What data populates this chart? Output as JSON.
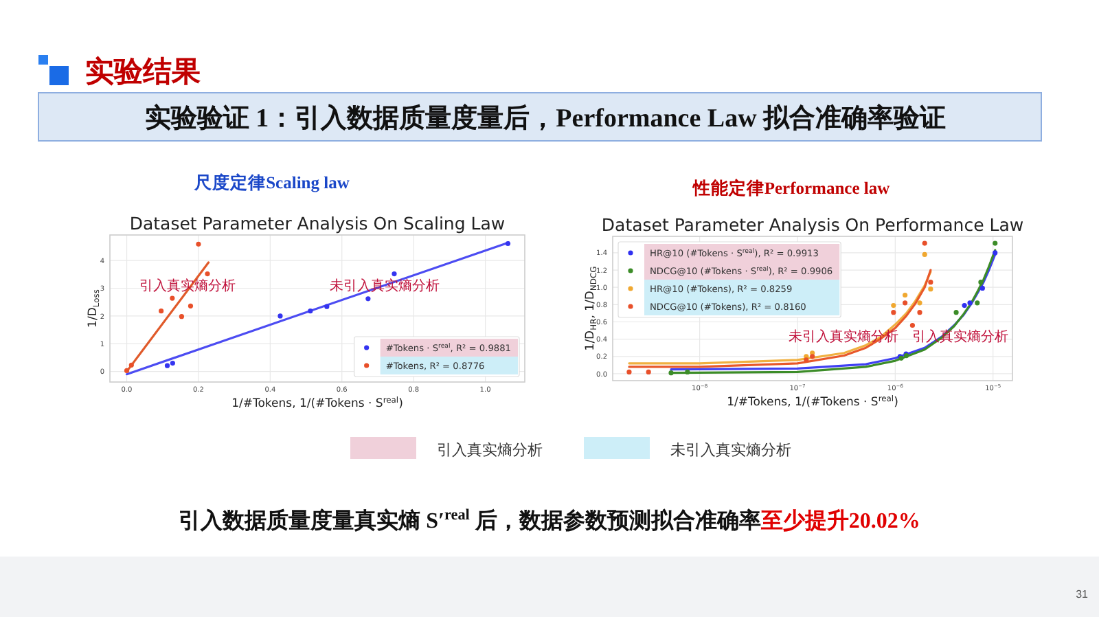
{
  "chart_data": [
    {
      "type": "other",
      "title": "实验结果",
      "subtitle": "实验验证 1：引入数据质量度量后，Performance Law 拟合准确率验证"
    },
    {
      "type": "scatter",
      "subtitle": "尺度定律Scaling law",
      "title": "Dataset Parameter Analysis On Scaling Law",
      "xlabel": "1/#Tokens, 1/(#Tokens · S$^{real}$)",
      "ylabel": "1/D$_{Loss}$",
      "xlim": [
        -0.047,
        1.11
      ],
      "ylim": [
        -0.38,
        4.92
      ],
      "xticks": [
        {
          "value": 0,
          "label": "0.0"
        },
        0.2,
        0.4,
        0.6,
        0.8,
        {
          "value": 1,
          "label": "1.0"
        }
      ],
      "yticks": [
        0,
        1,
        2,
        3,
        4
      ],
      "grid": true,
      "legend": "bottom right",
      "series": [
        {
          "name": "#Tokens · S$^{real}$, R² = 0.9881",
          "color": "#3434f0",
          "x": [
            0.113,
            0.128,
            0.428,
            0.512,
            0.558,
            0.673,
            0.746,
            1.063
          ],
          "values": [
            0.21,
            0.3,
            2.0,
            2.18,
            2.34,
            2.62,
            3.52,
            4.61
          ]
        },
        {
          "name": "#Tokens, R² = 0.8776",
          "color": "#e8502a",
          "x": [
            0.0,
            0.013,
            0.096,
            0.127,
            0.153,
            0.178,
            0.2,
            0.225
          ],
          "values": [
            0.03,
            0.23,
            2.18,
            2.64,
            1.98,
            2.36,
            4.59,
            3.52
          ]
        },
        {
          "type": "line",
          "color": "#4c4cf2",
          "x": [
            0,
            1.065
          ],
          "values": [
            -0.1,
            4.65
          ]
        },
        {
          "type": "line",
          "color": "#e05a2a",
          "x": [
            0,
            0.228
          ],
          "values": [
            0,
            3.93
          ]
        }
      ],
      "annotations": [
        {
          "text": "引入真实熵分析",
          "x": 0.17,
          "y": 3.1
        },
        {
          "text": "未引入真实熵分析",
          "x": 0.72,
          "y": 3.1
        }
      ]
    },
    {
      "type": "scatter",
      "subtitle": "性能定律Performance law",
      "title": "Dataset Parameter Analysis On Performance Law",
      "xlabel": "1/#Tokens, 1/(#Tokens · S$^{real}$)",
      "ylabel": "1/D$_{HR}$, 1/D$_{NDCG}$",
      "log": "x",
      "xlim": [
        1.29e-09,
        1.58e-05
      ],
      "ylim": [
        -0.08,
        1.59
      ],
      "xticks": [
        {
          "value": 1e-08,
          "label": "10$^{−8}$"
        },
        {
          "value": 1e-07,
          "label": "10$^{−7}$"
        },
        {
          "value": 1e-06,
          "label": "10$^{−6}$"
        },
        {
          "value": 1e-05,
          "label": "10$^{−5}$"
        }
      ],
      "yticks": [
        {
          "value": 0,
          "label": "0.0"
        },
        0.2,
        0.4,
        0.6,
        0.8,
        {
          "value": 1,
          "label": "1.0"
        },
        1.2,
        1.4
      ],
      "grid": true,
      "legend": "top left",
      "series": [
        {
          "name": "HR@10 (#Tokens · S$^{real}$), R² = 0.9913",
          "color": "#3030f0",
          "x": [
            1.12e-06,
            1.29e-06,
            5.1e-06,
            5.8e-06,
            7.8e-06,
            1.05e-05
          ],
          "values": [
            0.2,
            0.23,
            0.79,
            0.82,
            0.99,
            1.4
          ]
        },
        {
          "name": "NDCG@10 (#Tokens · S$^{real}$), R² = 0.9906",
          "color": "#3c8c28",
          "x": [
            5.1e-09,
            7.5e-09,
            1.15e-06,
            1.3e-06,
            4.2e-06,
            6.9e-06,
            7.5e-06,
            1.05e-05
          ],
          "values": [
            0.01,
            0.02,
            0.18,
            0.21,
            0.71,
            0.82,
            1.06,
            1.51
          ]
        },
        {
          "name": "HR@10 (#Tokens), R² = 0.8259",
          "color": "#f0a830",
          "x": [
            1.23e-07,
            1.42e-07,
            9.6e-07,
            1.26e-06,
            1.78e-06,
            2e-06,
            2.3e-06
          ],
          "values": [
            0.2,
            0.24,
            0.79,
            0.91,
            0.82,
            1.38,
            0.98
          ]
        },
        {
          "name": "NDCG@10 (#Tokens), R² = 0.8160",
          "color": "#e8502a",
          "x": [
            1.9e-09,
            3e-09,
            1.23e-07,
            1.42e-07,
            9.6e-07,
            1.26e-06,
            1.5e-06,
            1.78e-06,
            2e-06,
            2.3e-06
          ],
          "values": [
            0.02,
            0.02,
            0.16,
            0.2,
            0.71,
            0.82,
            0.56,
            0.71,
            1.51,
            1.06
          ]
        },
        {
          "type": "line",
          "color": "#4040f2",
          "x": [
            5.1e-09,
            1e-07,
            5e-07,
            1e-06,
            2e-06,
            3e-06,
            4e-06,
            5e-06,
            6e-06,
            7e-06,
            8e-06,
            9e-06,
            1.05e-05
          ],
          "values": [
            0.05,
            0.06,
            0.11,
            0.18,
            0.3,
            0.43,
            0.56,
            0.68,
            0.81,
            0.94,
            1.06,
            1.19,
            1.38
          ]
        },
        {
          "type": "line",
          "color": "#3c8c28",
          "x": [
            5.1e-09,
            1e-07,
            5e-07,
            1e-06,
            2e-06,
            3e-06,
            4e-06,
            5e-06,
            6e-06,
            7e-06,
            8e-06,
            9e-06,
            1.05e-05
          ],
          "values": [
            0.01,
            0.02,
            0.08,
            0.15,
            0.28,
            0.42,
            0.55,
            0.69,
            0.82,
            0.96,
            1.09,
            1.23,
            1.43
          ]
        },
        {
          "type": "line",
          "color": "#f0b040",
          "x": [
            1.9e-09,
            1e-08,
            1e-07,
            3e-07,
            5e-07,
            7e-07,
            1e-06,
            1.3e-06,
            1.6e-06,
            2e-06,
            2.3e-06
          ],
          "values": [
            0.12,
            0.12,
            0.16,
            0.24,
            0.33,
            0.42,
            0.57,
            0.7,
            0.84,
            1.02,
            1.18
          ]
        },
        {
          "type": "line",
          "color": "#e8582a",
          "x": [
            1.9e-09,
            1e-08,
            1e-07,
            3e-07,
            5e-07,
            7e-07,
            1e-06,
            1.3e-06,
            1.6e-06,
            2e-06,
            2.3e-06
          ],
          "values": [
            0.08,
            0.08,
            0.12,
            0.21,
            0.3,
            0.4,
            0.53,
            0.67,
            0.81,
            1.0,
            1.2
          ]
        }
      ],
      "annotations": [
        "未引入真实熵分析",
        "引入真实熵分析"
      ]
    },
    {
      "type": "other",
      "categories": [
        "引入真实熵分析",
        "未引入真实熵分析"
      ],
      "colors": [
        "#f0d0da",
        "#cdeef8"
      ],
      "annotations": [
        "引入数据质量度量真实熵 S′$^{real}$ 后，数据参数预测拟合准确率",
        "至少提升20.02%",
        "31"
      ]
    }
  ]
}
